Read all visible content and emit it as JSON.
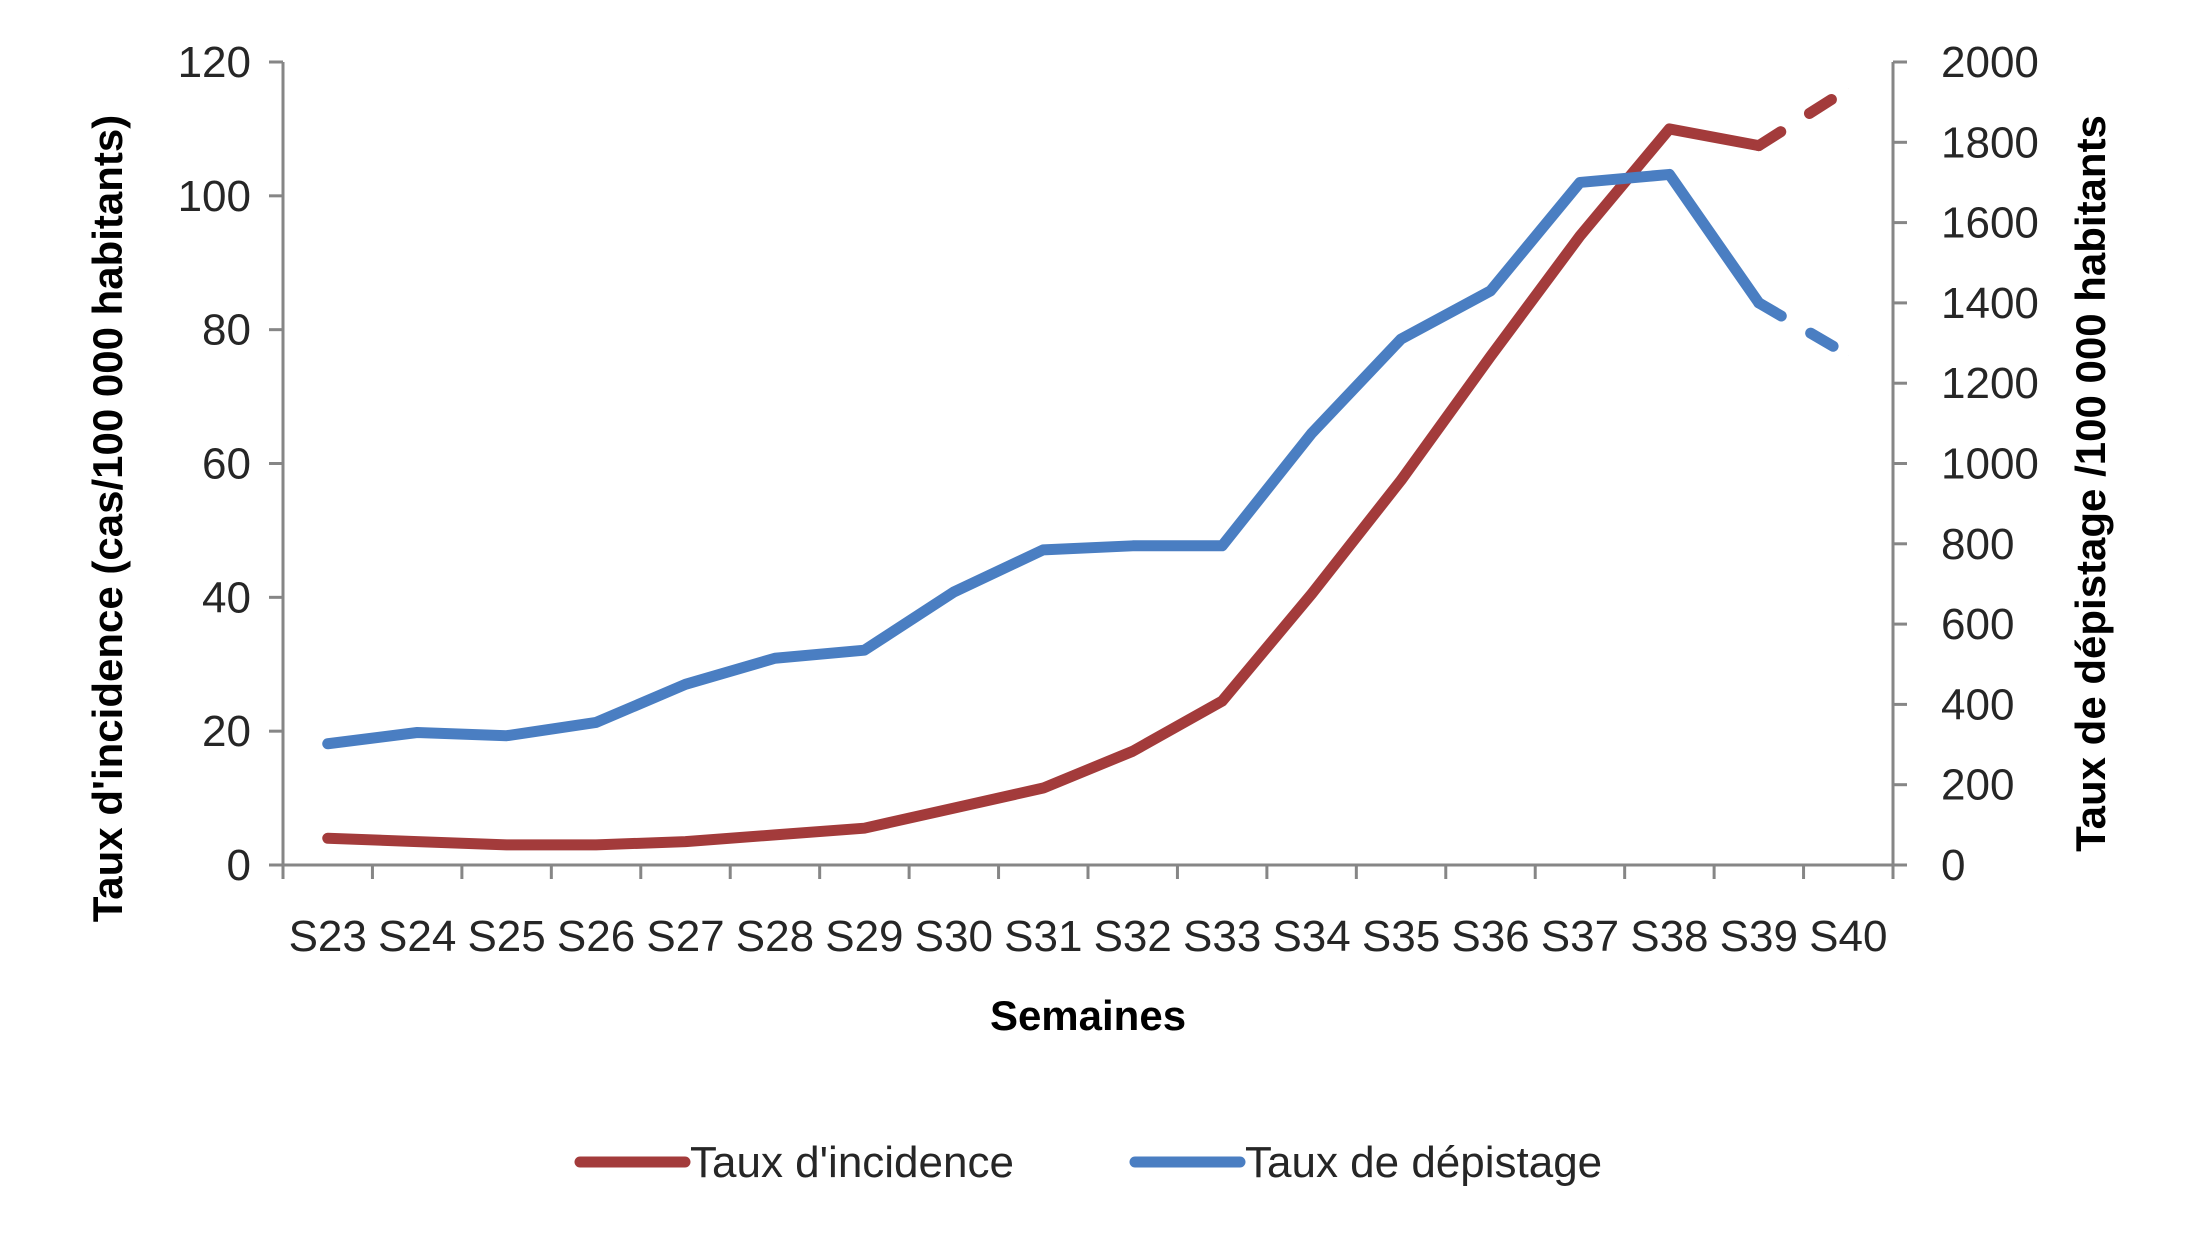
{
  "chart_data": {
    "type": "line",
    "title": "",
    "xlabel": "Semaines",
    "ylabel": "Taux d'incidence (cas/100 000 habitants)",
    "y2label": "Taux de dépistage /100 000 habitants",
    "categories": [
      "S23",
      "S24",
      "S25",
      "S26",
      "S27",
      "S28",
      "S29",
      "S30",
      "S31",
      "S32",
      "S33",
      "S34",
      "S35",
      "S36",
      "S37",
      "S38",
      "S39",
      "S40"
    ],
    "ylim": [
      0,
      120
    ],
    "yticks": [
      0,
      20,
      40,
      60,
      80,
      100,
      120
    ],
    "y2lim": [
      0,
      2000
    ],
    "y2ticks": [
      0,
      200,
      400,
      600,
      800,
      1000,
      1200,
      1400,
      1600,
      1800,
      2000
    ],
    "grid": false,
    "legend_position": "bottom",
    "series": [
      {
        "name": "Taux d'incidence",
        "axis": "left",
        "color": "#A33B3B",
        "values": [
          4,
          3.5,
          3,
          3,
          3.5,
          4.5,
          5.5,
          8.5,
          11.5,
          17,
          24.5,
          40.5,
          57.5,
          76,
          94,
          110,
          107.5,
          116
        ],
        "dashed_from_index": 16
      },
      {
        "name": "Taux de dépistage",
        "axis": "right",
        "color": "#4A7EC2",
        "values": [
          302,
          330,
          322,
          355,
          450,
          515,
          535,
          680,
          785,
          795,
          795,
          1075,
          1310,
          1430,
          1700,
          1720,
          1400,
          1270
        ],
        "dashed_from_index": 16
      }
    ]
  }
}
